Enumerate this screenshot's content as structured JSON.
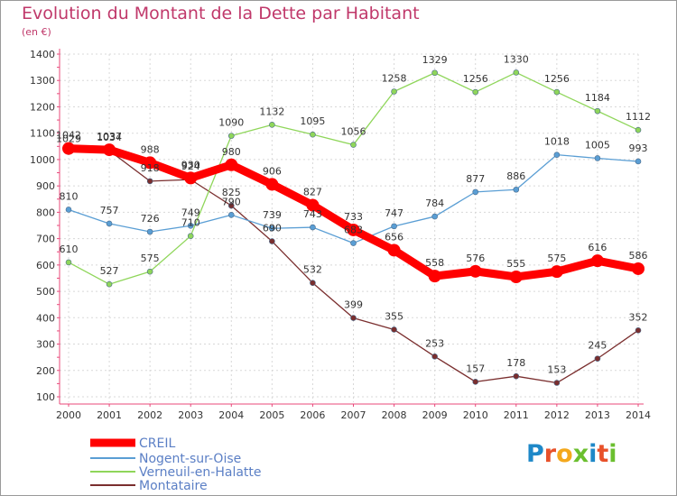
{
  "header": {
    "title": "Evolution du Montant de la Dette par Habitant",
    "unit": "(en €)"
  },
  "logo": {
    "text": "Proxiti",
    "colors": [
      "#1e88c8",
      "#e8512a",
      "#f4a81c",
      "#6bbf2f",
      "#1e88c8",
      "#e8512a",
      "#6bbf2f"
    ]
  },
  "chart_data": {
    "type": "line",
    "title": "Evolution du Montant de la Dette par Habitant",
    "ylabel": "(en €)",
    "xlabel": "",
    "x": [
      "2000",
      "2001",
      "2002",
      "2003",
      "2004",
      "2005",
      "2006",
      "2007",
      "2008",
      "2009",
      "2010",
      "2011",
      "2012",
      "2013",
      "2014"
    ],
    "ylim": [
      100,
      1400
    ],
    "yticks": [
      "100",
      "200",
      "300",
      "400",
      "500",
      "600",
      "700",
      "800",
      "900",
      "1000",
      "1100",
      "1200",
      "1300",
      "1400"
    ],
    "grid": true,
    "legend_position": "bottom-left",
    "series": [
      {
        "name": "CREIL",
        "color": "#ff0000",
        "values": [
          1042,
          1037,
          988,
          930,
          980,
          906,
          827,
          733,
          656,
          558,
          576,
          555,
          575,
          616,
          586
        ]
      },
      {
        "name": "Nogent-sur-Oise",
        "color": "#5a9ed4",
        "values": [
          810,
          757,
          726,
          749,
          790,
          739,
          743,
          683,
          747,
          784,
          877,
          886,
          1018,
          1005,
          993
        ]
      },
      {
        "name": "Verneuil-en-Halatte",
        "color": "#8fd65a",
        "values": [
          610,
          527,
          575,
          710,
          1090,
          1132,
          1095,
          1056,
          1258,
          1329,
          1256,
          1330,
          1256,
          1184,
          1112
        ]
      },
      {
        "name": "Montataire",
        "color": "#7a2e2e",
        "values": [
          1029,
          1034,
          918,
          924,
          825,
          690,
          532,
          399,
          355,
          253,
          157,
          178,
          153,
          245,
          352
        ]
      }
    ]
  }
}
